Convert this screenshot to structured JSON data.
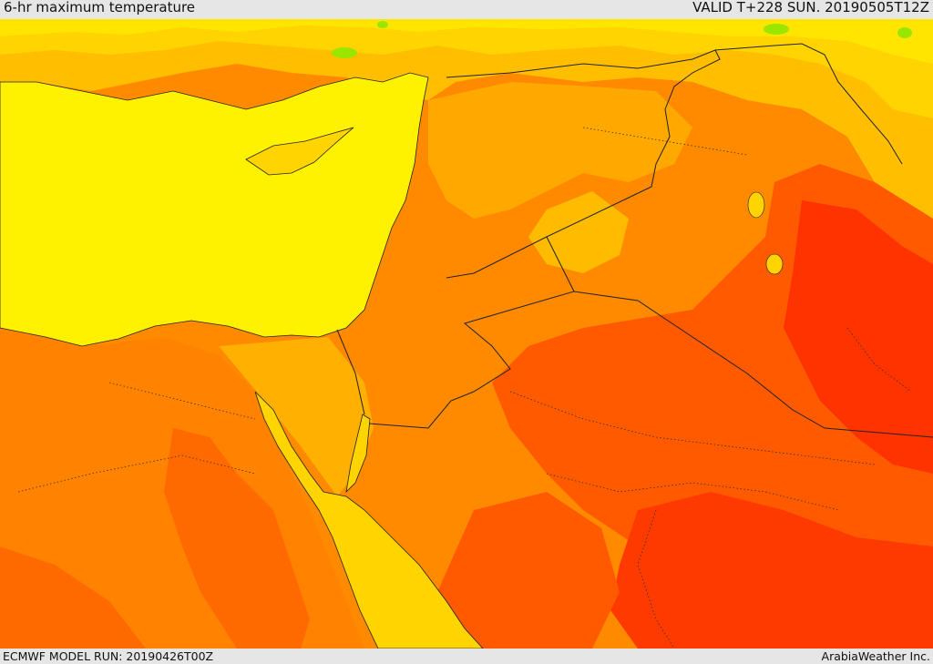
{
  "header": {
    "title": "6-hr maximum temperature",
    "valid_time": "VALID T+228 SUN. 20190505T12Z"
  },
  "footer": {
    "model_run": "ECMWF MODEL RUN: 20190426T00Z",
    "credit": "ArabiaWeather Inc."
  },
  "colors": {
    "sea": "#fff200",
    "pale_yellow": "#ffe500",
    "gold": "#ffd400",
    "light_orange": "#ffbb00",
    "orange": "#ff9a00",
    "dark_orange": "#ff7a00",
    "red_orange": "#ff5500",
    "red": "#ff3300",
    "green": "#9be600",
    "boundary": "#222222"
  }
}
